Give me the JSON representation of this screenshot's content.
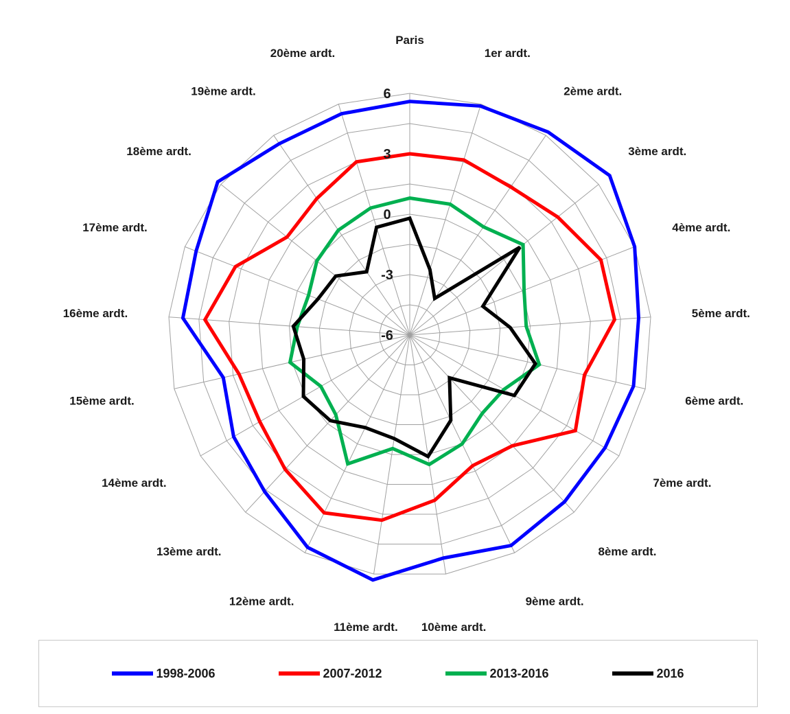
{
  "chart_data": {
    "type": "radar",
    "categories": [
      "Paris",
      "1er ardt.",
      "2ème ardt.",
      "3ème ardt.",
      "4ème ardt.",
      "5ème ardt.",
      "6ème ardt.",
      "7ème ardt.",
      "8ème ardt.",
      "9ème ardt.",
      "10ème ardt.",
      "11ème ardt.",
      "12ème ardt.",
      "13ème ardt.",
      "14ème ardt.",
      "15ème ardt.",
      "16ème ardt.",
      "17ème ardt.",
      "18ème ardt.",
      "19ème ardt.",
      "20ème ardt."
    ],
    "rlim": [
      -6,
      6
    ],
    "ticks": [
      6,
      3,
      0,
      -3,
      -6
    ],
    "tick_labels": [
      "6",
      "3",
      "0",
      "-3",
      "-6"
    ],
    "grid": true,
    "legend_position": "bottom",
    "series": [
      {
        "name": "1998-2006",
        "color": "#0000ff",
        "values": [
          5.6,
          5.9,
          6.2,
          6.7,
          6.0,
          5.4,
          5.4,
          5.2,
          5.3,
          5.6,
          5.2,
          6.3,
          5.7,
          4.6,
          4.1,
          3.5,
          5.3,
          5.4,
          6.2,
          5.5,
          5.5
        ]
      },
      {
        "name": "2007-2012",
        "color": "#ff0000",
        "values": [
          3.0,
          3.1,
          2.9,
          3.4,
          4.2,
          4.2,
          2.9,
          3.5,
          1.5,
          1.2,
          2.3,
          3.3,
          3.8,
          3.1,
          2.6,
          2.7,
          4.2,
          3.3,
          1.8,
          2.2,
          3.0
        ]
      },
      {
        "name": "2013-2016",
        "color": "#00b050",
        "values": [
          0.8,
          0.8,
          0.5,
          1.2,
          0.1,
          -0.2,
          0.6,
          -0.6,
          -0.7,
          0.0,
          0.5,
          -0.3,
          1.1,
          -0.6,
          -0.9,
          0.1,
          -0.4,
          -0.6,
          -0.1,
          0.3,
          0.6
        ]
      },
      {
        "name": "2016",
        "color": "#000000",
        "values": [
          -0.2,
          -2.6,
          -3.8,
          1.0,
          -2.1,
          -1.0,
          0.4,
          0.0,
          -3.1,
          -1.3,
          0.1,
          -0.8,
          -0.9,
          -0.2,
          0.1,
          -0.6,
          -0.2,
          -1.1,
          -1.3,
          -2.2,
          -0.4
        ]
      }
    ]
  }
}
